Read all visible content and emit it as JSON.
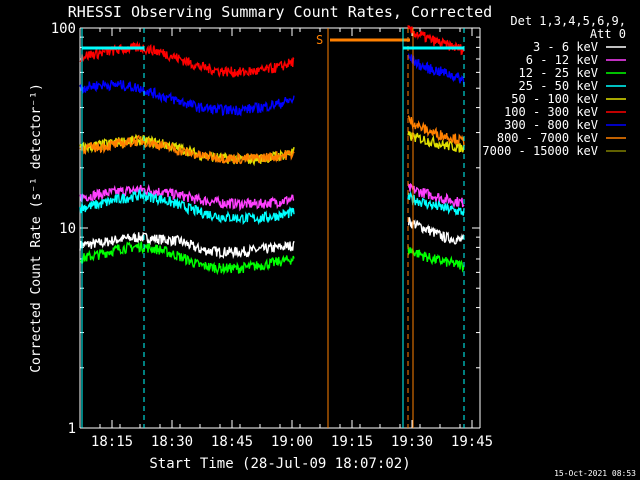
{
  "chart_data": {
    "type": "line",
    "title": "RHESSI Observing Summary Count Rates, Corrected",
    "xlabel": "Start Time (28-Jul-09 18:07:02)",
    "ylabel": "Corrected Count Rate (s⁻¹ detector⁻¹)",
    "xlim_minutes": [
      0,
      100
    ],
    "x_start": "18:07:02",
    "x_tick_labels": [
      "18:15",
      "18:30",
      "18:45",
      "19:00",
      "19:15",
      "19:30",
      "19:45"
    ],
    "x_tick_minutes": [
      8,
      23,
      38,
      53,
      68,
      83,
      98
    ],
    "y_scale": "log",
    "ylim": [
      1,
      100
    ],
    "y_tick_labels": [
      "1",
      "10",
      "100"
    ],
    "y_tick_values": [
      1,
      10,
      100
    ],
    "legend_header": [
      "Det 1,3,4,5,6,9,",
      "Att 0"
    ],
    "legend_position": "right",
    "footer_timestamp": "15-Oct-2021 08:53",
    "saa_marker_label": "S",
    "series": [
      {
        "name": "3 - 6 keV",
        "color": "#ffffff",
        "segments": [
          {
            "x": [
              0,
              5,
              10,
              15,
              20,
              25,
              30,
              35,
              40,
              45,
              50,
              53.5
            ],
            "y": [
              8.2,
              8.4,
              8.8,
              9.0,
              8.8,
              8.6,
              7.8,
              7.6,
              7.6,
              7.8,
              8.0,
              8.2
            ]
          },
          {
            "x": [
              82,
              85,
              88,
              91,
              94,
              96
            ],
            "y": [
              10.8,
              10.2,
              9.6,
              9.0,
              8.8,
              8.6
            ]
          }
        ]
      },
      {
        "name": "6 - 12 keV",
        "color": "#ff40ff",
        "segments": [
          {
            "x": [
              0,
              5,
              10,
              15,
              20,
              25,
              30,
              35,
              40,
              45,
              50,
              53.5
            ],
            "y": [
              14.2,
              14.8,
              15.2,
              15.6,
              15.2,
              14.6,
              13.8,
              13.4,
              13.2,
              13.2,
              13.6,
              14.0
            ]
          },
          {
            "x": [
              82,
              85,
              88,
              91,
              94,
              96
            ],
            "y": [
              15.8,
              15.2,
              14.6,
              14.0,
              13.6,
              13.4
            ]
          }
        ]
      },
      {
        "name": "12 - 25 keV",
        "color": "#00ff00",
        "segments": [
          {
            "x": [
              0,
              5,
              10,
              15,
              20,
              25,
              30,
              35,
              40,
              45,
              50,
              53.5
            ],
            "y": [
              7.0,
              7.4,
              7.9,
              8.1,
              7.8,
              7.2,
              6.5,
              6.3,
              6.3,
              6.5,
              6.8,
              7.0
            ]
          },
          {
            "x": [
              82,
              85,
              88,
              91,
              94,
              96
            ],
            "y": [
              7.8,
              7.4,
              7.0,
              6.8,
              6.6,
              6.5
            ]
          }
        ]
      },
      {
        "name": "25 - 50 keV",
        "color": "#00ffff",
        "segments": [
          {
            "x": [
              0,
              5,
              10,
              15,
              20,
              25,
              30,
              35,
              40,
              45,
              50,
              53.5
            ],
            "y": [
              12.6,
              13.2,
              14.0,
              14.6,
              14.0,
              13.0,
              12.0,
              11.4,
              11.2,
              11.2,
              11.6,
              12.0
            ]
          },
          {
            "x": [
              82,
              85,
              88,
              91,
              94,
              96
            ],
            "y": [
              14.2,
              13.6,
              13.0,
              12.6,
              12.2,
              12.0
            ]
          }
        ]
      },
      {
        "name": "50 - 100 keV",
        "color": "#e0e000",
        "segments": [
          {
            "x": [
              0,
              5,
              10,
              15,
              20,
              25,
              30,
              35,
              40,
              45,
              50,
              53.5
            ],
            "y": [
              25.0,
              26.0,
              27.0,
              27.5,
              26.5,
              25.0,
              23.2,
              22.4,
              22.0,
              22.2,
              23.0,
              24.0
            ]
          },
          {
            "x": [
              82,
              85,
              88,
              91,
              94,
              96
            ],
            "y": [
              29.0,
              28.0,
              27.0,
              26.0,
              25.5,
              25.0
            ]
          }
        ]
      },
      {
        "name": "100 - 300 keV",
        "color": "#ff0000",
        "segments": [
          {
            "x": [
              0,
              5,
              10,
              15,
              20,
              25,
              30,
              35,
              40,
              45,
              50,
              53.5
            ],
            "y": [
              72,
              75,
              78,
              80,
              76,
              70,
              64,
              61,
              60,
              61,
              64,
              68
            ]
          },
          {
            "x": [
              82,
              85,
              88,
              91,
              94,
              96
            ],
            "y": [
              98,
              92,
              87,
              83,
              80,
              78
            ]
          }
        ]
      },
      {
        "name": "300 - 800 keV",
        "color": "#0000ff",
        "segments": [
          {
            "x": [
              0,
              5,
              10,
              15,
              20,
              25,
              30,
              35,
              40,
              45,
              50,
              53.5
            ],
            "y": [
              50,
              52,
              52,
              50,
              46,
              43,
              40,
              39,
              39,
              40,
              42,
              44
            ]
          },
          {
            "x": [
              82,
              85,
              88,
              91,
              94,
              96
            ],
            "y": [
              72,
              65,
              62,
              60,
              57,
              55
            ]
          }
        ]
      },
      {
        "name": "800 - 7000 keV",
        "color": "#ff8000",
        "segments": [
          {
            "x": [
              0,
              5,
              10,
              15,
              20,
              25,
              30,
              35,
              40,
              45,
              50,
              53.5
            ],
            "y": [
              25.0,
              25.4,
              26.4,
              27.4,
              26.0,
              24.4,
              23.0,
              22.5,
              22.2,
              22.4,
              23.0,
              23.6
            ]
          },
          {
            "x": [
              82,
              85,
              88,
              91,
              94,
              96
            ],
            "y": [
              35,
              32,
              30,
              29,
              28,
              27
            ]
          }
        ]
      },
      {
        "name": "7000 - 15000 keV",
        "color": "#808000",
        "segments": []
      }
    ]
  }
}
